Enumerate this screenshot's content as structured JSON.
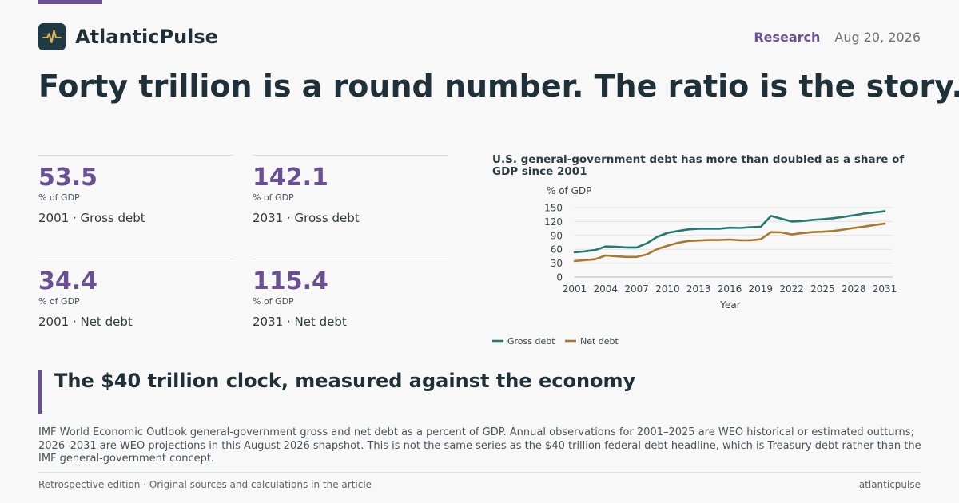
{
  "brand": {
    "name": "AtlanticPulse",
    "logo_icon": "pulse-icon"
  },
  "header": {
    "section": "Research",
    "date": "Aug 20, 2026"
  },
  "headline": "Forty trillion is a round number. The ratio is the story.",
  "kpis": [
    {
      "value": "53.5",
      "unit": "% of GDP",
      "label": "2001 · Gross debt"
    },
    {
      "value": "142.1",
      "unit": "% of GDP",
      "label": "2031 · Gross debt"
    },
    {
      "value": "34.4",
      "unit": "% of GDP",
      "label": "2001 · Net debt"
    },
    {
      "value": "115.4",
      "unit": "% of GDP",
      "label": "2031 · Net debt"
    }
  ],
  "chart_data": {
    "type": "line",
    "title": "U.S. general-government debt has more than doubled as a share of GDP since 2001",
    "xlabel": "Year",
    "ylabel": "% of GDP",
    "xlim": [
      2001,
      2031
    ],
    "ylim": [
      0,
      150
    ],
    "xticks": [
      2001,
      2004,
      2007,
      2010,
      2013,
      2016,
      2019,
      2022,
      2025,
      2028,
      2031
    ],
    "yticks": [
      0,
      30,
      60,
      90,
      120,
      150
    ],
    "grid": true,
    "legend": "bottom-left",
    "x": [
      2001,
      2002,
      2003,
      2004,
      2005,
      2006,
      2007,
      2008,
      2009,
      2010,
      2011,
      2012,
      2013,
      2014,
      2015,
      2016,
      2017,
      2018,
      2019,
      2020,
      2021,
      2022,
      2023,
      2024,
      2025,
      2026,
      2027,
      2028,
      2029,
      2030,
      2031
    ],
    "series": [
      {
        "name": "Gross debt",
        "color": "#237a73",
        "values": [
          53.5,
          55.5,
          58.5,
          66.0,
          65.5,
          64.0,
          64.0,
          73.0,
          87.0,
          95.5,
          99.5,
          103.0,
          104.5,
          104.5,
          104.5,
          106.5,
          106.0,
          107.5,
          108.5,
          132.0,
          126.0,
          120.0,
          121.0,
          123.5,
          125.0,
          127.0,
          130.0,
          133.5,
          137.0,
          139.5,
          142.1
        ]
      },
      {
        "name": "Net debt",
        "color": "#a8782e",
        "values": [
          34.4,
          36.5,
          38.5,
          46.5,
          45.0,
          43.5,
          43.5,
          49.0,
          60.5,
          67.5,
          74.0,
          78.0,
          79.0,
          80.0,
          80.0,
          81.0,
          79.5,
          79.5,
          81.5,
          97.0,
          96.5,
          92.0,
          95.0,
          97.0,
          98.0,
          99.5,
          102.5,
          106.0,
          109.0,
          112.5,
          115.4
        ]
      }
    ]
  },
  "subhead": "The $40 trillion clock, measured against the economy",
  "body": "IMF World Economic Outlook general-government gross and net debt as a percent of GDP. Annual observations for 2001–2025 are WEO historical or estimated outturns; 2026–2031 are WEO projections in this August 2026 snapshot. This is not the same series as the $40 trillion federal debt headline, which is Treasury debt rather than the IMF general-government concept.",
  "footer": {
    "left": "Retrospective edition · Original sources and calculations in the article",
    "right": "atlanticpulse"
  }
}
